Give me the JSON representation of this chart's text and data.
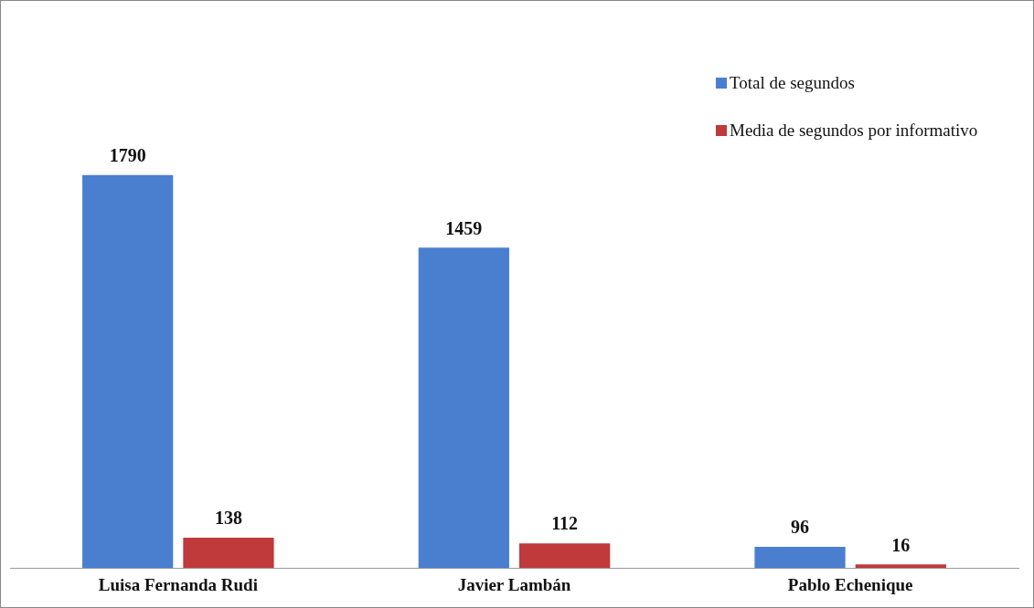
{
  "chart_data": {
    "type": "bar",
    "categories": [
      "Luisa Fernanda Rudi",
      "Javier Lambán",
      "Pablo Echenique"
    ],
    "series": [
      {
        "name": "Total de segundos",
        "color": "#4a7fd0",
        "values": [
          1790,
          1459,
          96
        ]
      },
      {
        "name": "Media de segundos por informativo",
        "color": "#c0393b",
        "values": [
          138,
          112,
          16
        ]
      }
    ],
    "data_labels": true,
    "legend": "top right"
  }
}
